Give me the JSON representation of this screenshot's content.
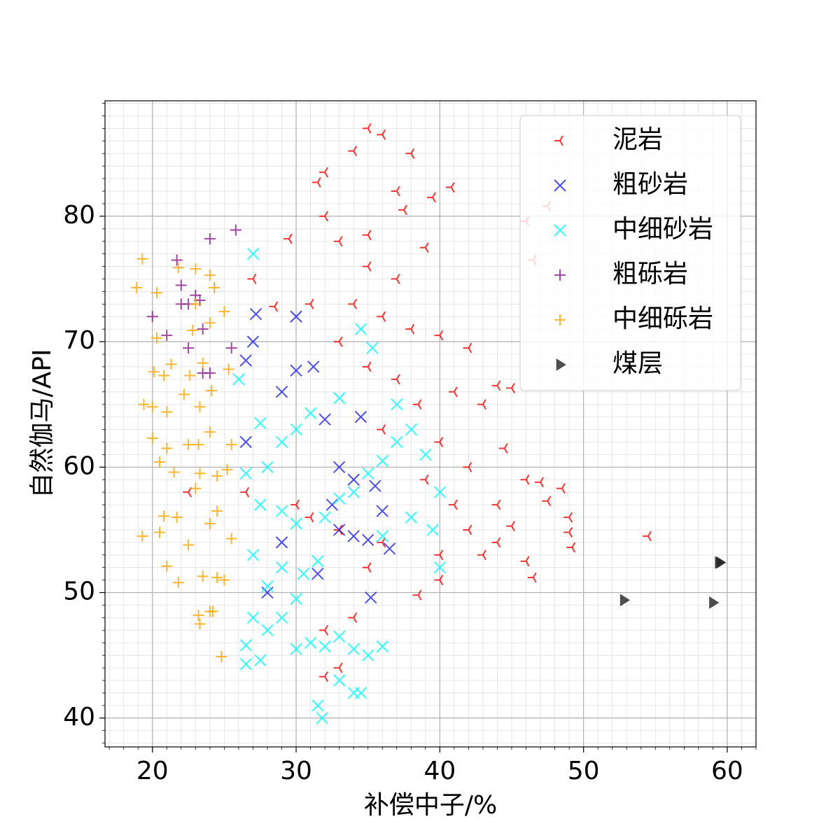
{
  "chart_data": {
    "type": "scatter",
    "xlabel": "补偿中子/%",
    "ylabel": "自然伽马/API",
    "xlim": [
      16.7,
      62.0
    ],
    "ylim": [
      37.7,
      89.2
    ],
    "xticks": [
      20,
      30,
      40,
      50,
      60
    ],
    "yticks": [
      40,
      50,
      60,
      70,
      80
    ],
    "grid": true,
    "minor_grid": true,
    "legend": "upper right",
    "series": [
      {
        "name": "泥岩",
        "color": "#ff0000",
        "marker": "tri_left",
        "x": [
          35,
          36,
          32,
          31.5,
          34,
          38,
          37,
          40.8,
          32,
          37.5,
          39.5,
          46,
          47.5,
          46.5,
          29.5,
          33,
          35,
          39,
          27,
          35,
          37,
          31,
          34,
          28.5,
          36,
          38,
          40,
          33,
          35,
          37,
          42,
          44,
          45,
          41,
          38.5,
          43,
          36,
          40,
          44.5,
          42,
          39,
          46,
          48.5,
          47,
          44,
          45,
          49,
          47.5,
          43,
          46,
          49,
          49.2,
          54.5,
          46.5,
          40,
          38.5,
          35,
          33,
          31,
          30,
          26.5,
          22.5,
          32,
          32,
          33,
          34,
          36,
          41,
          42,
          40,
          44
        ],
        "y": [
          87,
          86.5,
          83.5,
          82.7,
          85.2,
          85,
          82,
          82.3,
          80,
          80.5,
          81.5,
          79.6,
          80.8,
          76.5,
          78.2,
          78,
          78.5,
          77.5,
          75,
          76,
          75,
          73,
          73,
          72.8,
          72,
          71,
          70.5,
          70,
          68,
          67,
          69.5,
          66.5,
          66.3,
          66,
          65,
          65,
          63,
          62,
          61.5,
          60,
          59,
          59,
          58.3,
          58.8,
          57,
          55.3,
          56,
          57.3,
          53,
          52.5,
          54.8,
          53.6,
          54.5,
          51.2,
          51,
          49.8,
          52,
          55,
          56,
          57,
          58,
          58,
          47,
          43.3,
          44,
          48,
          54,
          57,
          55,
          53,
          54
        ]
      },
      {
        "name": "粗砂岩",
        "color": "#2222ff",
        "marker": "x",
        "x": [
          27.2,
          30,
          27,
          26.5,
          30,
          31.2,
          29,
          26.5,
          32,
          33,
          34.5,
          35.5,
          36,
          35,
          34,
          33,
          35.2,
          29,
          28,
          31.5,
          32.5,
          36.5,
          34
        ],
        "y": [
          72.2,
          72,
          70,
          68.5,
          67.7,
          68,
          66,
          62,
          63.8,
          60,
          64,
          58.5,
          56.5,
          54.2,
          54.5,
          55,
          49.6,
          54,
          50,
          51.5,
          57,
          53.5,
          59
        ]
      },
      {
        "name": "中细砂岩",
        "color": "#00ffff",
        "marker": "x",
        "x": [
          27,
          26,
          34.5,
          35.3,
          31,
          33,
          27.5,
          29,
          30,
          28,
          26.5,
          27.5,
          29,
          30,
          32,
          33,
          34,
          35,
          36,
          37,
          37,
          38,
          39,
          40,
          39.5,
          36,
          27,
          28,
          29,
          30.5,
          31.5,
          27,
          28,
          26.5,
          26.5,
          27.5,
          30,
          31,
          32,
          33,
          34,
          35,
          36,
          33,
          34,
          34.5,
          31.8,
          31.5,
          29,
          30,
          38,
          40
        ],
        "y": [
          77,
          67,
          71,
          69.5,
          64.3,
          65.5,
          63.5,
          62,
          63,
          60,
          59.5,
          57,
          56.5,
          55.5,
          56,
          57.5,
          58,
          59.5,
          60.5,
          62,
          65,
          63,
          61,
          58,
          55,
          54.5,
          53,
          50.5,
          52,
          51.5,
          52.5,
          48,
          47,
          45.8,
          44.3,
          44.6,
          45.5,
          46,
          45.7,
          46.5,
          45.5,
          45,
          45.7,
          43,
          42,
          42,
          40,
          41,
          48,
          49.5,
          56,
          52
        ]
      },
      {
        "name": "粗砾岩",
        "color": "#8b1a8b",
        "marker": "plus",
        "x": [
          25.8,
          24,
          21.7,
          22,
          23,
          22,
          22.5,
          23.3,
          20,
          21,
          22.5,
          23.5,
          25.5,
          23.5,
          24
        ],
        "y": [
          78.9,
          78.2,
          76.5,
          74.5,
          73.7,
          73,
          73,
          73.3,
          72,
          70.5,
          69.5,
          71,
          69.5,
          67.5,
          67.5
        ]
      },
      {
        "name": "中细砾岩",
        "color": "#ffa500",
        "marker": "plus",
        "x": [
          19.3,
          18.9,
          20.3,
          21.8,
          23,
          24,
          24.3,
          23,
          25,
          24,
          22.8,
          20.3,
          21.3,
          20.1,
          20.8,
          22.6,
          23.5,
          25.3,
          19.4,
          20,
          21,
          22.2,
          23.3,
          24.1,
          20,
          21,
          22.5,
          23.2,
          24,
          25.5,
          20.5,
          21.5,
          23.3,
          24.5,
          25.2,
          23,
          24.5,
          20.8,
          21.7,
          19.3,
          20.5,
          22.5,
          24,
          25.5,
          21,
          23.5,
          24.5,
          25,
          21.8,
          23.2,
          24,
          24.2,
          23.3,
          24.8
        ],
        "y": [
          76.6,
          74.3,
          73.9,
          75.9,
          75.8,
          75.3,
          74.3,
          73,
          72.4,
          71.5,
          70.9,
          70.3,
          68.2,
          67.6,
          67.3,
          67.3,
          68.3,
          67.8,
          65,
          64.8,
          64.4,
          65.8,
          64.8,
          66.1,
          62.3,
          61.5,
          61.8,
          61.8,
          62.8,
          61.8,
          60.4,
          59.6,
          59.5,
          59.3,
          59.8,
          58.3,
          56.5,
          56.1,
          56,
          54.5,
          54.8,
          53.8,
          55.5,
          54.3,
          52.1,
          51.3,
          51.2,
          51,
          50.8,
          48.2,
          48.5,
          48.5,
          47.5,
          44.9
        ]
      },
      {
        "name": "煤层",
        "color": "#222222",
        "marker": "triangle_right",
        "x": [
          52.8,
          59.5,
          59,
          59.4
        ],
        "y": [
          49.4,
          52.4,
          49.2,
          52.4
        ]
      }
    ]
  }
}
